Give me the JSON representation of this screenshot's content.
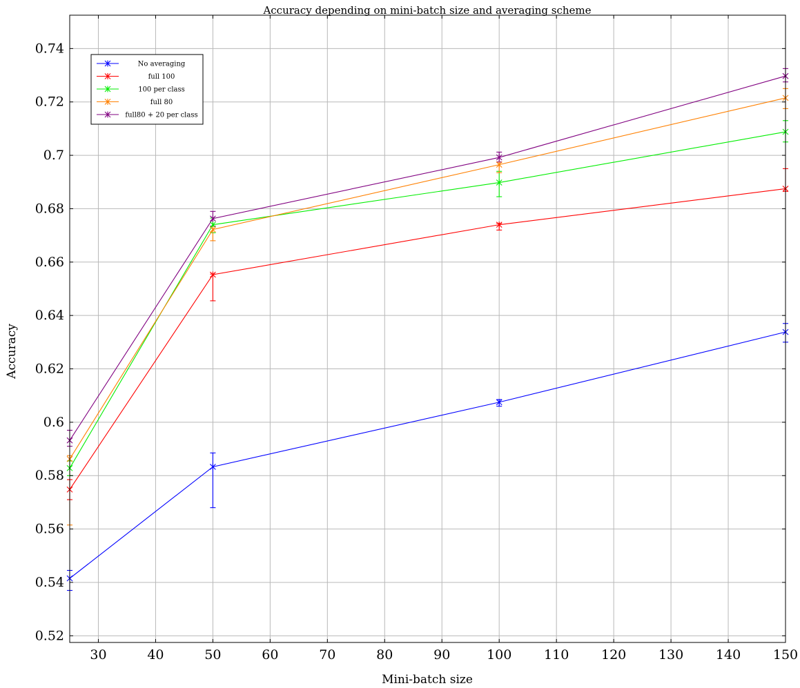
{
  "chart_data": {
    "type": "line",
    "title": "Accuracy depending on mini-batch size and averaging scheme",
    "xlabel": "Mini-batch size",
    "ylabel": "Accuracy",
    "xlim": [
      25,
      150
    ],
    "ylim": [
      0.5175,
      0.7525
    ],
    "xticks": [
      30,
      40,
      50,
      60,
      70,
      80,
      90,
      100,
      110,
      120,
      130,
      140,
      150
    ],
    "yticks": [
      0.52,
      0.54,
      0.56,
      0.58,
      0.6,
      0.62,
      0.64,
      0.66,
      0.68,
      0.7,
      0.72,
      0.74
    ],
    "ytick_labels": [
      "0.52",
      "0.54",
      "0.56",
      "0.58",
      "0.6",
      "0.62",
      "0.64",
      "0.66",
      "0.68",
      "0.7",
      "0.72",
      "0.74"
    ],
    "grid": true,
    "legend_position": "top-left",
    "x": [
      25,
      50,
      100,
      150
    ],
    "series": [
      {
        "name": "No averaging",
        "color": "#0000ff",
        "values": [
          0.5415,
          0.5833,
          0.6075,
          0.6338
        ],
        "err": [
          [
            0.537,
            0.5445
          ],
          [
            0.568,
            0.5885
          ],
          [
            0.606,
            0.6085
          ],
          [
            0.63,
            0.637
          ]
        ]
      },
      {
        "name": "full 100",
        "color": "#ff0000",
        "values": [
          0.5748,
          0.6553,
          0.674,
          0.6875
        ],
        "err": [
          [
            0.571,
            0.5785
          ],
          [
            0.6455,
            0.6555
          ],
          [
            0.672,
            0.6745
          ],
          [
            0.6865,
            0.695
          ]
        ]
      },
      {
        "name": "100 per class",
        "color": "#00ee00",
        "values": [
          0.5828,
          0.674,
          0.6898,
          0.7088
        ],
        "err": [
          [
            0.58,
            0.5855
          ],
          [
            0.671,
            0.6765
          ],
          [
            0.6845,
            0.694
          ],
          [
            0.705,
            0.713
          ]
        ]
      },
      {
        "name": "full 80",
        "color": "#ff8000",
        "values": [
          0.5862,
          0.6722,
          0.6965,
          0.7215
        ],
        "err": [
          [
            0.5615,
            0.5875
          ],
          [
            0.668,
            0.6735
          ],
          [
            0.6935,
            0.6975
          ],
          [
            0.7175,
            0.725
          ]
        ]
      },
      {
        "name": "full80 + 20 per class",
        "color": "#800080",
        "values": [
          0.5932,
          0.6763,
          0.6992,
          0.7297
        ],
        "err": [
          [
            0.591,
            0.597
          ],
          [
            0.6735,
            0.679
          ],
          [
            0.6975,
            0.7012
          ],
          [
            0.7275,
            0.7325
          ]
        ]
      }
    ]
  }
}
